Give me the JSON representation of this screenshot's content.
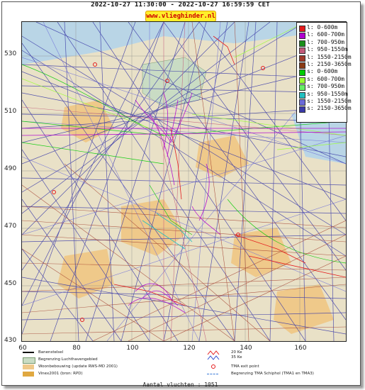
{
  "header": {
    "time_range": "2022-10-27 11:30:00 - 2022-10-27 16:59:59 CET",
    "brand": "www.vlieghinder.nl"
  },
  "axes": {
    "y_ticks": [
      "530",
      "510",
      "490",
      "470",
      "450",
      "430"
    ],
    "x_ticks": [
      "60",
      "80",
      "100",
      "120",
      "140",
      "160"
    ]
  },
  "legend": [
    {
      "label": "l: 0-600m",
      "color": "#e41a1c"
    },
    {
      "label": "l: 600-700m",
      "color": "#b000d0"
    },
    {
      "label": "l: 700-950m",
      "color": "#1a8f1a"
    },
    {
      "label": "l: 950-1550m",
      "color": "#c25a7a"
    },
    {
      "label": "l: 1550-2150m",
      "color": "#a03a2a"
    },
    {
      "label": "l: 2150-3650m",
      "color": "#8a3a14"
    },
    {
      "label": "s: 0-600m",
      "color": "#00cc00"
    },
    {
      "label": "s: 600-700m",
      "color": "#99ff33"
    },
    {
      "label": "s: 700-950m",
      "color": "#66ee66"
    },
    {
      "label": "s: 950-1550m",
      "color": "#22c0c0"
    },
    {
      "label": "s: 1550-2150m",
      "color": "#6a6ad8"
    },
    {
      "label": "s: 2150-3650m",
      "color": "#3a3aa8"
    }
  ],
  "map_legend": {
    "runway": "Banenstelsel",
    "airport_boundary": "Begrenzing Luchthavengebied",
    "residential": "Woonbebouwing (update RWS-MD 2001)",
    "vinex": "Vinex2001 (bron: RPD)",
    "kv20": "20 Ke",
    "kv35": "35 Ke",
    "tma_exit": "TMA exit point",
    "tma_boundary": "Begrenzing TMA Schiphol  (TMA1 en TMA3)"
  },
  "footer": {
    "flights": "Aantal vluchten : 1051"
  }
}
